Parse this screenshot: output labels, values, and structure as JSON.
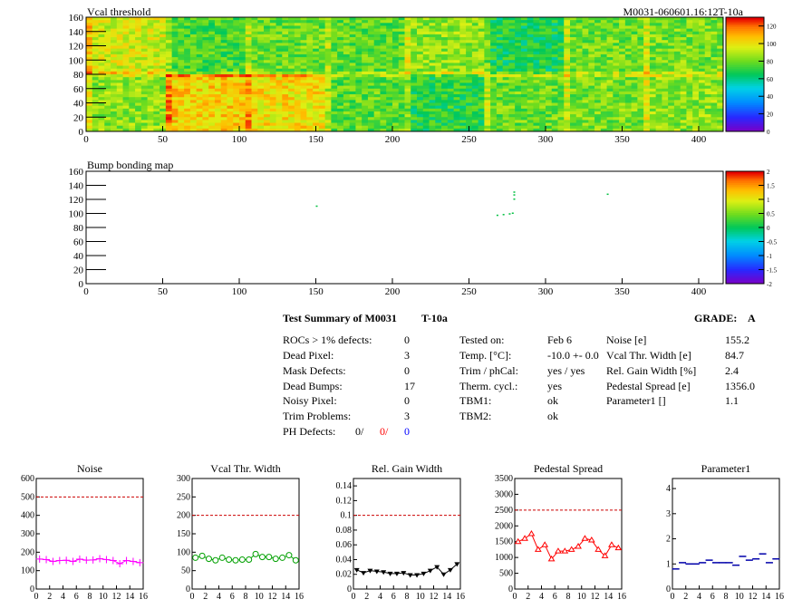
{
  "top_label_id": "M0031-060601.16:12T-10a",
  "summary": {
    "title": "Test Summary of M0031",
    "title_tag": "T-10a",
    "grade_label": "GRADE:",
    "grade": "A",
    "left": [
      {
        "label": "ROCs > 1% defects:",
        "value": "0"
      },
      {
        "label": "Dead Pixel:",
        "value": "3"
      },
      {
        "label": "Mask Defects:",
        "value": "0"
      },
      {
        "label": "Dead Bumps:",
        "value": "17"
      },
      {
        "label": "Noisy Pixel:",
        "value": "0"
      },
      {
        "label": "Trim Problems:",
        "value": "3"
      }
    ],
    "ph_label": "PH Defects:",
    "ph_values": [
      "0/",
      "0/",
      "0"
    ],
    "middle": [
      {
        "label": "Tested on:",
        "value": "Feb 6"
      },
      {
        "label": "Temp. [°C]:",
        "value": "-10.0 +- 0.0"
      },
      {
        "label": "Trim / phCal:",
        "value": "yes / yes"
      },
      {
        "label": "Therm. cycl.:",
        "value": "yes"
      },
      {
        "label": "TBM1:",
        "value": "ok"
      },
      {
        "label": "TBM2:",
        "value": "ok"
      }
    ],
    "right": [
      {
        "label": "Noise [e]",
        "value": "155.2"
      },
      {
        "label": "Vcal Thr. Width [e]",
        "value": "84.7"
      },
      {
        "label": "Rel. Gain Width [%]",
        "value": "2.4"
      },
      {
        "label": "Pedestal Spread [e]",
        "value": "1356.0"
      },
      {
        "label": "Parameter1 []",
        "value": "1.1"
      }
    ]
  },
  "chart_data": [
    {
      "type": "heatmap",
      "title": "Vcal threshold",
      "xlim": [
        0,
        416
      ],
      "ylim": [
        0,
        160
      ],
      "xticks": [
        "0",
        "50",
        "100",
        "150",
        "200",
        "250",
        "300",
        "350",
        "400"
      ],
      "yticks": [
        "0",
        "20",
        "40",
        "60",
        "80",
        "100",
        "120",
        "140",
        "160"
      ],
      "colorbar_ticks": [
        "0",
        "20",
        "40",
        "60",
        "80",
        "100",
        "120"
      ],
      "zlim": [
        0,
        130
      ],
      "roc_mean_top": [
        95,
        75,
        80,
        78,
        85,
        68,
        80,
        82
      ],
      "roc_mean_bottom": [
        85,
        105,
        102,
        78,
        70,
        80,
        82,
        85
      ]
    },
    {
      "type": "heatmap",
      "title": "Bump bonding map",
      "xlim": [
        0,
        416
      ],
      "ylim": [
        0,
        160
      ],
      "xticks": [
        "0",
        "50",
        "100",
        "150",
        "200",
        "250",
        "300",
        "350",
        "400"
      ],
      "yticks": [
        "0",
        "20",
        "40",
        "60",
        "80",
        "100",
        "120",
        "140",
        "160"
      ],
      "colorbar_ticks": [
        "2",
        "1.5",
        "1",
        "0.5",
        "0",
        "-0.5",
        "-1",
        "-1.5",
        "-2"
      ],
      "zlim": [
        -2,
        2
      ],
      "points": [
        [
          150,
          110
        ],
        [
          268,
          97
        ],
        [
          272,
          98
        ],
        [
          276,
          99
        ],
        [
          278,
          100
        ],
        [
          279,
          120
        ],
        [
          279,
          126
        ],
        [
          279,
          130
        ],
        [
          340,
          127
        ]
      ]
    },
    {
      "type": "line",
      "title": "Noise",
      "ylim": [
        0,
        600
      ],
      "yticks": [
        "0",
        "100",
        "200",
        "300",
        "400",
        "500",
        "600"
      ],
      "xticks": [
        "0",
        "2",
        "4",
        "6",
        "8",
        "10",
        "12",
        "14",
        "16"
      ],
      "xlim": [
        0,
        16
      ],
      "threshold": 500,
      "color": "#ff00ff",
      "marker": "plus",
      "x": [
        0.5,
        1.5,
        2.5,
        3.5,
        4.5,
        5.5,
        6.5,
        7.5,
        8.5,
        9.5,
        10.5,
        11.5,
        12.5,
        13.5,
        14.5,
        15.5
      ],
      "values": [
        163,
        160,
        150,
        155,
        156,
        150,
        162,
        157,
        158,
        165,
        160,
        155,
        138,
        155,
        150,
        143
      ]
    },
    {
      "type": "line",
      "title": "Vcal Thr. Width",
      "ylim": [
        0,
        300
      ],
      "yticks": [
        "0",
        "50",
        "100",
        "150",
        "200",
        "250",
        "300"
      ],
      "xticks": [
        "0",
        "2",
        "4",
        "6",
        "8",
        "10",
        "12",
        "14",
        "16"
      ],
      "xlim": [
        0,
        16
      ],
      "threshold": 200,
      "color": "#00a000",
      "marker": "circle",
      "x": [
        0.5,
        1.5,
        2.5,
        3.5,
        4.5,
        5.5,
        6.5,
        7.5,
        8.5,
        9.5,
        10.5,
        11.5,
        12.5,
        13.5,
        14.5,
        15.5
      ],
      "values": [
        85,
        90,
        82,
        78,
        85,
        80,
        78,
        80,
        80,
        95,
        87,
        87,
        82,
        85,
        92,
        78
      ]
    },
    {
      "type": "line",
      "title": "Rel. Gain Width",
      "ylim": [
        0,
        0.15
      ],
      "yticks": [
        "0",
        "0.02",
        "0.04",
        "0.06",
        "0.08",
        "0.1",
        "0.12",
        "0.14"
      ],
      "xticks": [
        "0",
        "2",
        "4",
        "6",
        "8",
        "10",
        "12",
        "14",
        "16"
      ],
      "xlim": [
        0,
        16
      ],
      "threshold": 0.1,
      "color": "#000000",
      "marker": "triangle-down",
      "x": [
        0.5,
        1.5,
        2.5,
        3.5,
        4.5,
        5.5,
        6.5,
        7.5,
        8.5,
        9.5,
        10.5,
        11.5,
        12.5,
        13.5,
        14.5,
        15.5
      ],
      "values": [
        0.026,
        0.022,
        0.025,
        0.024,
        0.023,
        0.021,
        0.021,
        0.022,
        0.019,
        0.019,
        0.021,
        0.025,
        0.03,
        0.02,
        0.026,
        0.034
      ]
    },
    {
      "type": "line",
      "title": "Pedestal Spread",
      "ylim": [
        0,
        3500
      ],
      "yticks": [
        "0",
        "500",
        "1000",
        "1500",
        "2000",
        "2500",
        "3000",
        "3500"
      ],
      "xticks": [
        "0",
        "2",
        "4",
        "6",
        "8",
        "10",
        "12",
        "14",
        "16"
      ],
      "xlim": [
        0,
        16
      ],
      "threshold": 2500,
      "color": "#ff0000",
      "marker": "triangle-up",
      "x": [
        0.5,
        1.5,
        2.5,
        3.5,
        4.5,
        5.5,
        6.5,
        7.5,
        8.5,
        9.5,
        10.5,
        11.5,
        12.5,
        13.5,
        14.5,
        15.5
      ],
      "values": [
        1500,
        1600,
        1750,
        1250,
        1400,
        950,
        1200,
        1200,
        1250,
        1350,
        1600,
        1550,
        1250,
        1050,
        1400,
        1300
      ]
    },
    {
      "type": "scatter",
      "title": "Parameter1",
      "ylim": [
        0,
        4.4
      ],
      "yticks": [
        "0",
        "1",
        "2",
        "3",
        "4"
      ],
      "xticks": [
        "0",
        "2",
        "4",
        "6",
        "8",
        "10",
        "12",
        "14",
        "16"
      ],
      "xlim": [
        0,
        16
      ],
      "color": "#0000aa",
      "marker": "hbar",
      "x": [
        0.5,
        1.5,
        2.5,
        3.5,
        4.5,
        5.5,
        6.5,
        7.5,
        8.5,
        9.5,
        10.5,
        11.5,
        12.5,
        13.5,
        14.5,
        15.5
      ],
      "values": [
        0.8,
        1.05,
        1.0,
        1.0,
        1.05,
        1.15,
        1.05,
        1.05,
        1.05,
        0.95,
        1.3,
        1.15,
        1.2,
        1.4,
        1.05,
        1.2
      ]
    }
  ]
}
